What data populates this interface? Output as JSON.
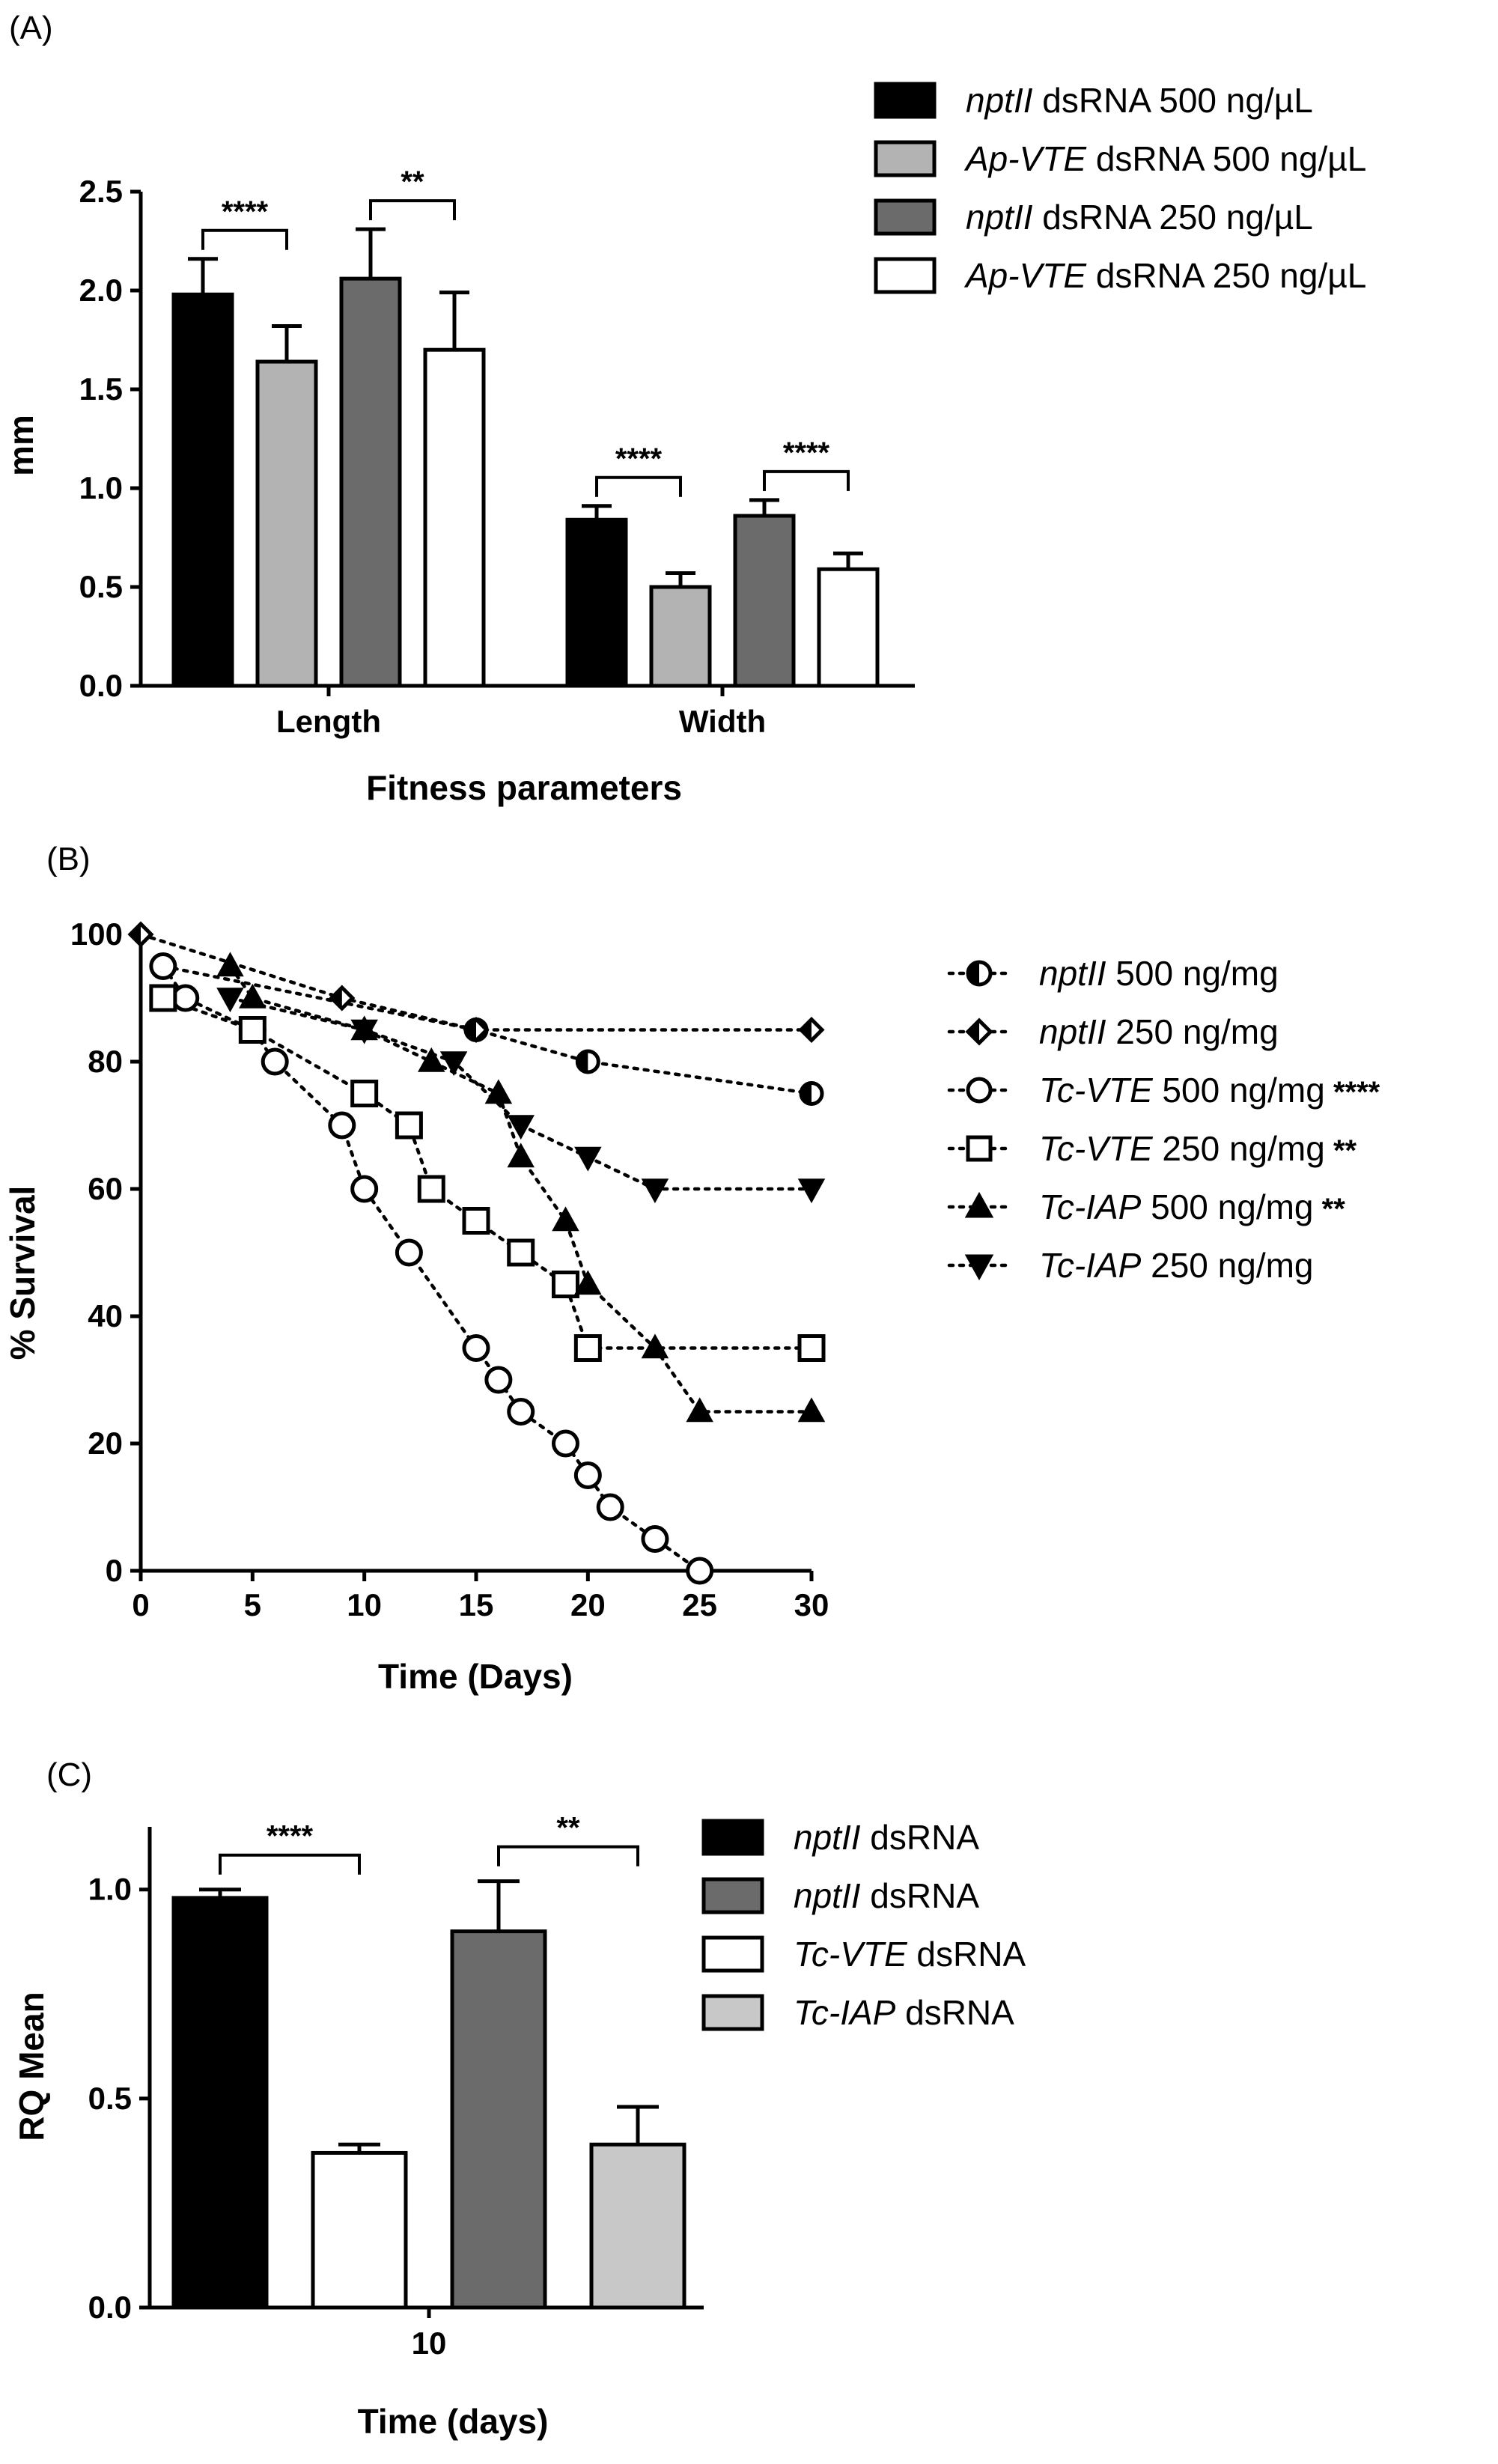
{
  "colors": {
    "black": "#000000",
    "light_gray": "#b3b3b3",
    "dark_gray": "#6b6b6b",
    "white": "#ffffff",
    "iap_gray": "#c8c8c8"
  },
  "chart_data": [
    {
      "panel": "(A)",
      "type": "bar",
      "xlabel": "Fitness parameters",
      "ylabel": "mm",
      "ylim": [
        0,
        2.5
      ],
      "yticks": [
        "0.0",
        "0.5",
        "1.0",
        "1.5",
        "2.0",
        "2.5"
      ],
      "categories": [
        "Length",
        "Width"
      ],
      "series": [
        {
          "name_it": "nptII",
          "name_rest": " dsRNA 500 ng/µL",
          "color": "#000000",
          "values": [
            1.98,
            0.84
          ],
          "errors": [
            0.18,
            0.07
          ]
        },
        {
          "name_it": "Ap-VTE",
          "name_rest": " dsRNA 500 ng/µL",
          "color": "#b3b3b3",
          "values": [
            1.64,
            0.5
          ],
          "errors": [
            0.18,
            0.07
          ]
        },
        {
          "name_it": "nptII",
          "name_rest": " dsRNA 250 ng/µL",
          "color": "#6b6b6b",
          "values": [
            2.06,
            0.86
          ],
          "errors": [
            0.25,
            0.08
          ]
        },
        {
          "name_it": "Ap-VTE",
          "name_rest": " dsRNA 250 ng/µL",
          "color": "#ffffff",
          "values": [
            1.7,
            0.59
          ],
          "errors": [
            0.29,
            0.08
          ]
        }
      ],
      "significance": [
        {
          "category": "Length",
          "from": 0,
          "to": 1,
          "label": "****"
        },
        {
          "category": "Length",
          "from": 2,
          "to": 3,
          "label": "**"
        },
        {
          "category": "Width",
          "from": 0,
          "to": 1,
          "label": "****"
        },
        {
          "category": "Width",
          "from": 2,
          "to": 3,
          "label": "****"
        }
      ]
    },
    {
      "panel": "(B)",
      "type": "line",
      "xlabel": "Time (Days)",
      "ylabel": "% Survival",
      "xlim": [
        0,
        30
      ],
      "ylim": [
        0,
        100
      ],
      "xticks": [
        "0",
        "5",
        "10",
        "15",
        "20",
        "25",
        "30"
      ],
      "yticks": [
        "0",
        "20",
        "40",
        "60",
        "80",
        "100"
      ],
      "series": [
        {
          "name_it": "nptII",
          "name_rest": "  500 ng/mg",
          "sig": "",
          "marker": "half-circle",
          "x": [
            1,
            15,
            20,
            30
          ],
          "y": [
            95,
            85,
            80,
            75
          ]
        },
        {
          "name_it": "nptII",
          "name_rest": "  250 ng/mg",
          "sig": "",
          "marker": "half-diamond",
          "x": [
            0,
            9,
            15,
            30
          ],
          "y": [
            100,
            90,
            85,
            85
          ]
        },
        {
          "name_it": "Tc-VTE",
          "name_rest": " 500 ng/mg",
          "sig": "****",
          "marker": "open-circle",
          "x": [
            1,
            2,
            5,
            6,
            9,
            10,
            12,
            15,
            16,
            17,
            19,
            20,
            21,
            23,
            25
          ],
          "y": [
            95,
            90,
            85,
            80,
            70,
            60,
            50,
            35,
            30,
            25,
            20,
            15,
            10,
            5,
            0
          ]
        },
        {
          "name_it": "Tc-VTE",
          "name_rest": " 250 ng/mg",
          "sig": "**",
          "marker": "open-square",
          "x": [
            1,
            5,
            10,
            12,
            13,
            15,
            17,
            19,
            20,
            30
          ],
          "y": [
            90,
            85,
            75,
            70,
            60,
            55,
            50,
            45,
            35,
            35
          ]
        },
        {
          "name_it": "Tc-IAP",
          "name_rest": " 500 ng/mg",
          "sig": "**",
          "marker": "triangle-up",
          "x": [
            4,
            5,
            10,
            13,
            16,
            17,
            19,
            20,
            23,
            25,
            30
          ],
          "y": [
            95,
            90,
            85,
            80,
            75,
            65,
            55,
            45,
            35,
            25,
            25
          ]
        },
        {
          "name_it": "Tc-IAP",
          "name_rest": " 250 ng/mg",
          "sig": "",
          "marker": "triangle-down",
          "x": [
            4,
            10,
            14,
            17,
            20,
            23,
            30
          ],
          "y": [
            90,
            85,
            80,
            70,
            65,
            60,
            60
          ]
        }
      ]
    },
    {
      "panel": "(C)",
      "type": "bar",
      "xlabel": "Time (days)",
      "ylabel": "RQ Mean",
      "ylim": [
        0,
        1.15
      ],
      "yticks": [
        "0.0",
        "0.5",
        "1.0"
      ],
      "categories": [
        "10"
      ],
      "series": [
        {
          "name_it": "nptII",
          "name_rest": " dsRNA",
          "color": "#000000",
          "values": [
            0.98
          ],
          "errors": [
            0.02
          ]
        },
        {
          "name_it": "Tc-VTE",
          "name_rest": " dsRNA",
          "color": "#ffffff",
          "values": [
            0.37
          ],
          "errors": [
            0.02
          ]
        },
        {
          "name_it": "nptII",
          "name_rest": " dsRNA",
          "color": "#6b6b6b",
          "values": [
            0.9
          ],
          "errors": [
            0.12
          ]
        },
        {
          "name_it": "Tc-IAP",
          "name_rest": " dsRNA",
          "color": "#c8c8c8",
          "values": [
            0.39
          ],
          "errors": [
            0.09
          ]
        }
      ],
      "legend_order": [
        0,
        2,
        1,
        3
      ],
      "significance": [
        {
          "from": 0,
          "to": 1,
          "label": "****"
        },
        {
          "from": 2,
          "to": 3,
          "label": "**"
        }
      ]
    }
  ]
}
